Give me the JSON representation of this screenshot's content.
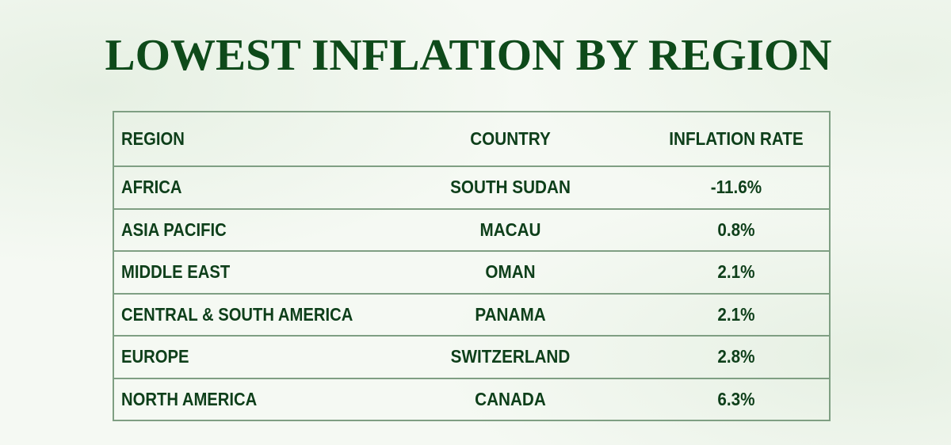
{
  "header": {
    "title": "LOWEST INFLATION BY REGION"
  },
  "table": {
    "columns": [
      "REGION",
      "COUNTRY",
      "INFLATION RATE"
    ],
    "rows": [
      [
        "AFRICA",
        "SOUTH SUDAN",
        "-11.6%"
      ],
      [
        "ASIA PACIFIC",
        "MACAU",
        "0.8%"
      ],
      [
        "MIDDLE EAST",
        "OMAN",
        "2.1%"
      ],
      [
        "CENTRAL & SOUTH AMERICA",
        "PANAMA",
        "2.1%"
      ],
      [
        "EUROPE",
        "SWITZERLAND",
        "2.8%"
      ],
      [
        "NORTH AMERICA",
        "CANADA",
        "6.3%"
      ]
    ]
  }
}
